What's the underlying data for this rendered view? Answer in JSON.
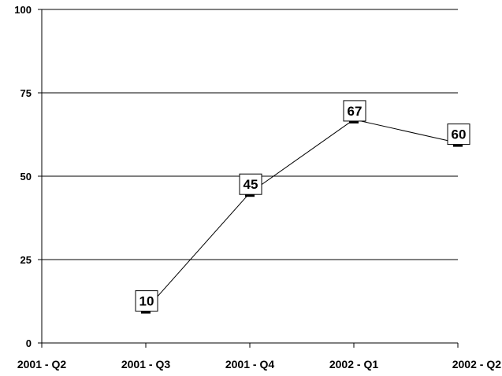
{
  "chart_data": {
    "type": "line",
    "title": "",
    "xlabel": "",
    "ylabel": "",
    "categories": [
      "2001 - Q2",
      "2001 - Q3",
      "2001 - Q4",
      "2002 - Q1",
      "2002 - Q2"
    ],
    "series": [
      {
        "values": [
          null,
          10,
          45,
          67,
          60
        ]
      }
    ],
    "data_labels": [
      "",
      "10",
      "45",
      "67",
      "60"
    ],
    "ylim": [
      0,
      100
    ],
    "yticks": [
      "0",
      "25",
      "50",
      "75",
      "100"
    ],
    "grid": true,
    "legend": "none",
    "colors": {
      "line": "#000000",
      "grid": "#000000",
      "marker": "#000000",
      "label_box": "#ffffff"
    }
  }
}
